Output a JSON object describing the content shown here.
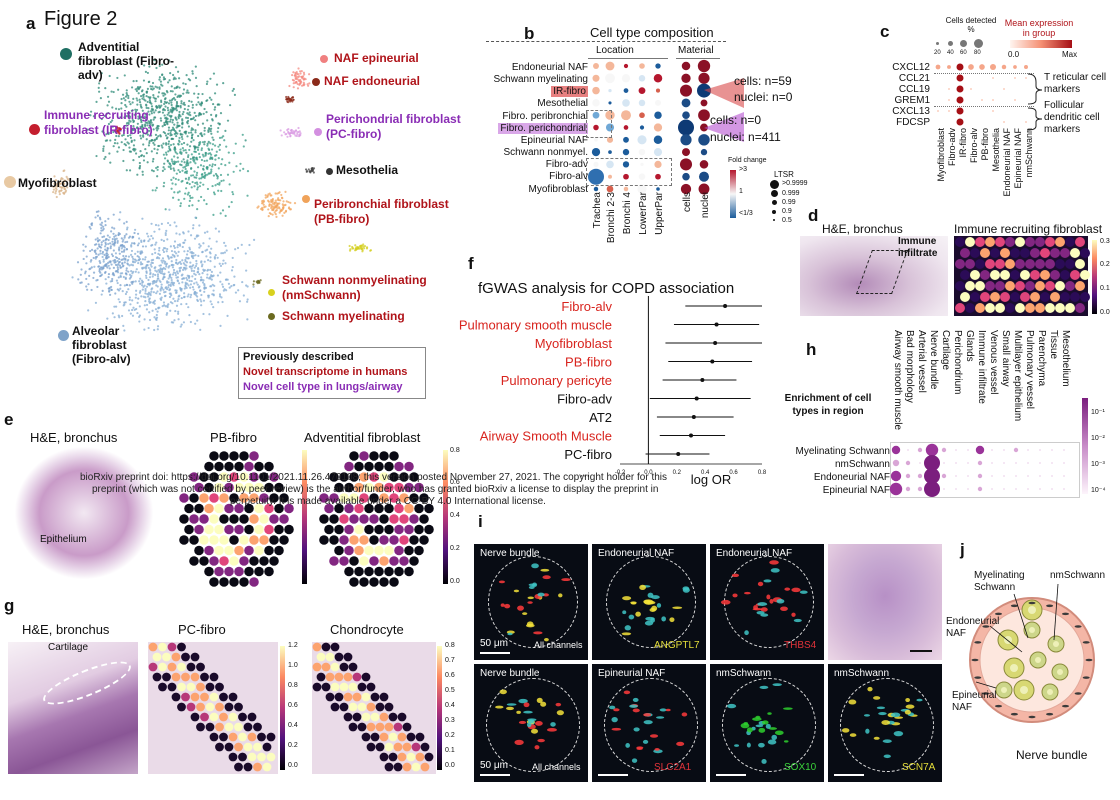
{
  "panel_letters": {
    "a": "a",
    "b": "b",
    "c": "c",
    "d": "d",
    "e": "e",
    "f": "f",
    "g": "g",
    "h": "h",
    "i": "i",
    "j": "j"
  },
  "figure_title": "Figure 2",
  "panel_a": {
    "labels": {
      "adv": "Adventitial fibroblast (Fibro-adv)",
      "ir": "Immune recruiting fibroblast (IR-fibro)",
      "myo": "Myofibroblast",
      "alv": "Alveolar fibroblast (Fibro-alv)",
      "naf_epi": "NAF epineurial",
      "naf_endo": "NAF endoneurial",
      "pc": "Perichondrial fibroblast (PC-fibro)",
      "meso": "Mesothelia",
      "pb": "Peribronchial fibroblast (PB-fibro)",
      "nms": "Schwann nonmyelinating (nmSchwann)",
      "ms": "Schwann myelinating"
    },
    "legend": {
      "prev": "Previously described",
      "novel_tx": "Novel transcriptome in humans",
      "novel_cell": "Novel cell type in lungs/airway"
    }
  },
  "panel_b": {
    "title": "Cell type composition",
    "group_location": "Location",
    "group_material": "Material",
    "rows": [
      "Endoneurial NAF",
      "Schwann myelinating",
      "IR-fibro",
      "Mesothelial",
      "Fibro. peribronchial",
      "Fibro. perichondrial",
      "Epineurial NAF",
      "Schwann nonmyel.",
      "Fibro-adv",
      "Fibro-alv",
      "Myofibroblast"
    ],
    "cols": [
      "Trachea",
      "Bronchi 2-3",
      "Bronchi 4",
      "LowerPar",
      "UpperPar",
      "cells",
      "nuclei"
    ],
    "callout1": {
      "cells": "cells: n=59",
      "nuclei": "nuclei: n=0"
    },
    "callout2": {
      "cells": "cells: n=0",
      "nuclei": "nuclei: n=411"
    },
    "fold_title": "Fold change",
    "fold_ticks": [
      ">3",
      "1",
      "<1/3"
    ],
    "ltsr_title": "LTSR",
    "ltsr_ticks": [
      ">0.9999",
      "0.999",
      "0.99",
      "0.9",
      "0.5"
    ]
  },
  "panel_c": {
    "cells_detected": "Cells detected %",
    "pct_ticks": [
      "20",
      "40",
      "60",
      "80"
    ],
    "mean_expr": "Mean expression in group",
    "scale_min": "0.0",
    "scale_max": "Max",
    "genes": [
      "CXCL12",
      "CCL21",
      "CCL19",
      "GREM1",
      "CXCL13",
      "FDCSP"
    ],
    "cols": [
      "Myofibroblast",
      "Fibro-adv",
      "IR-fibro",
      "Fibro-alv",
      "PB-fibro",
      "Mesothelia",
      "Endoneurial NAF",
      "Epineurial NAF",
      "nmSchwann"
    ],
    "brace1": "T reticular cell markers",
    "brace2": "Follicular dendritic cell markers"
  },
  "panel_d": {
    "he_title": "H&E, bronchus",
    "immune": "Immune infiltrate",
    "ir_title": "Immune recruiting fibroblast",
    "ticks": [
      "0.3",
      "0.2",
      "0.1",
      "0.0"
    ]
  },
  "panel_e": {
    "he_title": "H&E, bronchus",
    "epithelium": "Epithelium",
    "pb_title": "PB-fibro",
    "adv_title": "Adventitial fibroblast",
    "ticks": [
      "0.8",
      "0.6",
      "0.4",
      "0.2",
      "0.0"
    ],
    "preprint_line1": "bioRxiv preprint doi: https://doi.org/10.1101/2021.11.26.470108; this version posted November 27, 2021. The copyright holder for this",
    "preprint_line2": "preprint (which was not certified by peer review) is the author/funder, who has granted bioRxiv a license to display the preprint in",
    "preprint_line3": "perpetuity. It is made available under a CC-BY 4.0 International license."
  },
  "panel_f": {
    "title": "fGWAS analysis for COPD association",
    "xlabel": "log OR",
    "ellipsis": "...",
    "xticks": [
      "-0.2",
      "0.0",
      "0.2",
      "0.4",
      "0.6",
      "0.8"
    ]
  },
  "chart_data": {
    "type": "scatter",
    "title": "fGWAS analysis for COPD association",
    "xlabel": "log OR",
    "xlim": [
      -0.2,
      0.8
    ],
    "categories": [
      "Fibro-alv",
      "Pulmonary smooth muscle",
      "Myofibroblast",
      "PB-fibro",
      "Pulmonary pericyte",
      "Fibro-adv",
      "AT2",
      "Airway Smooth Muscle",
      "PC-fibro"
    ],
    "estimate": [
      0.54,
      0.48,
      0.47,
      0.45,
      0.38,
      0.34,
      0.32,
      0.3,
      0.21
    ],
    "ci_low": [
      0.26,
      0.18,
      0.12,
      0.14,
      0.1,
      0.01,
      0.06,
      0.08,
      -0.02
    ],
    "ci_high": [
      0.8,
      0.78,
      0.8,
      0.73,
      0.62,
      0.72,
      0.6,
      0.54,
      0.43
    ],
    "label_colors": [
      "#d8241e",
      "#d8241e",
      "#d8241e",
      "#d8241e",
      "#d8241e",
      "#111111",
      "#111111",
      "#d8241e",
      "#111111"
    ]
  },
  "panel_g": {
    "he_title": "H&E, bronchus",
    "cartilage": "Cartilage",
    "pc_title": "PC-fibro",
    "chondro_title": "Chondrocyte",
    "ticks1": [
      "1.2",
      "1.0",
      "0.8",
      "0.6",
      "0.4",
      "0.2",
      "0.0"
    ],
    "ticks2": [
      "0.8",
      "0.7",
      "0.6",
      "0.5",
      "0.4",
      "0.3",
      "0.2",
      "0.1",
      "0.0"
    ]
  },
  "panel_h": {
    "enrich": "Enrichment of cell types in region",
    "cols": [
      "Airway smooth muscle",
      "Bad morphology",
      "Arterial vessel",
      "Nerve bundle",
      "Cartilage",
      "Perichondrium",
      "Glands",
      "Immune infiltrate",
      "Venous vessel",
      "Small airway",
      "Multilayer epithelium",
      "Pulmonary vessel",
      "Parenchyma",
      "Tissue",
      "Mesothelium"
    ],
    "rows": [
      "Myelinating Schwann",
      "nmSchwann",
      "Endoneurial NAF",
      "Epineurial NAF"
    ],
    "ticks": [
      "10⁻¹",
      "10⁻²",
      "10⁻³",
      "10⁻⁴"
    ]
  },
  "panel_i": {
    "top": [
      "Nerve bundle",
      "Endoneurial NAF",
      "Endoneurial NAF"
    ],
    "top_markers": [
      "ANGPTL7",
      "THBS4"
    ],
    "bottom": [
      "Nerve bundle",
      "Epineurial NAF",
      "nmSchwann",
      "nmSchwann"
    ],
    "bottom_markers": [
      "SLC2A1",
      "SOX10",
      "SCN7A"
    ],
    "scale": "50 μm",
    "all_channels": "All channels"
  },
  "panel_j": {
    "myel": "Myelinating Schwann",
    "nms": "nmSchwann",
    "endo": "Endoneurial NAF",
    "epi": "Epineurial NAF",
    "nerve": "Nerve bundle"
  }
}
